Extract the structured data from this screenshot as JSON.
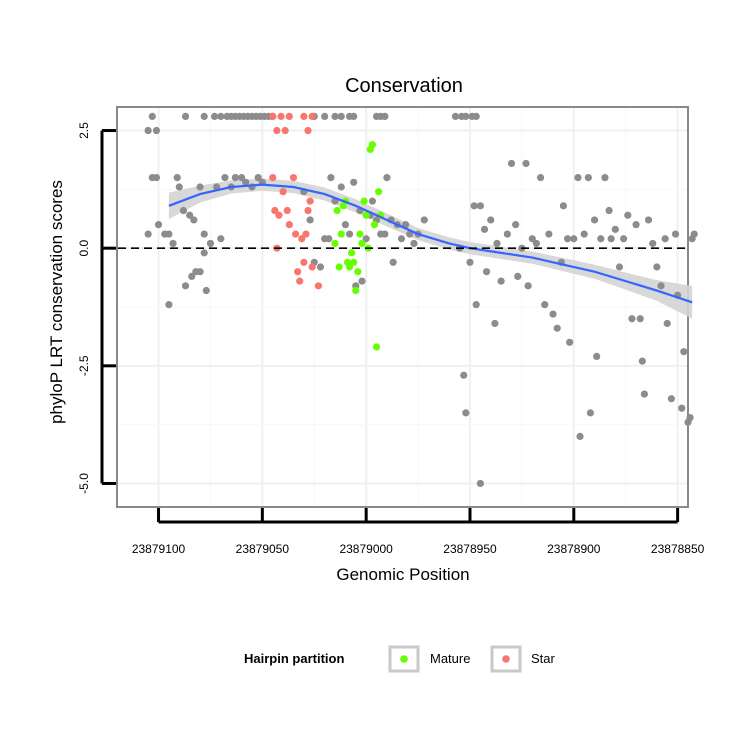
{
  "chart_data": {
    "type": "scatter",
    "title": "Conservation",
    "xlabel": "Genomic Position",
    "ylabel": "phyloP LRT conservation scores",
    "xlim": [
      23879120,
      23878845
    ],
    "ylim": [
      -5.5,
      3.0
    ],
    "x_reversed": true,
    "xticks": [
      23879100,
      23879050,
      23879000,
      23878950,
      23878900,
      23878850
    ],
    "xtick_labels": [
      "23879100",
      "23879050",
      "23879000",
      "23878950",
      "23878900",
      "23878850"
    ],
    "yticks": [
      2.5,
      0.0,
      -2.5,
      -5.0
    ],
    "ytick_labels": [
      "2.5",
      "0.0",
      "-2.5",
      "-5.0"
    ],
    "reference_line": {
      "y": 0,
      "style": "dashed",
      "color": "#000000"
    },
    "legend": {
      "title": "Hairpin partition",
      "position": "bottom",
      "entries": [
        {
          "label": "Mature",
          "color": "#66ff00"
        },
        {
          "label": "Star",
          "color": "#f8766d"
        }
      ]
    },
    "colors": {
      "other": "#8c8c8c",
      "Mature": "#66ff00",
      "Star": "#f8766d",
      "smooth": "#3366ff",
      "ribbon": "#d4d4d4"
    },
    "series": [
      {
        "name": "Other",
        "points": [
          [
            23879105,
            2.5
          ],
          [
            23879103,
            2.8
          ],
          [
            23879101,
            2.5
          ],
          [
            23879103,
            1.5
          ],
          [
            23879101,
            1.5
          ],
          [
            23879105,
            0.3
          ],
          [
            23879100,
            0.5
          ],
          [
            23879097,
            0.3
          ],
          [
            23879095,
            0.3
          ],
          [
            23879093,
            0.1
          ],
          [
            23879091,
            1.5
          ],
          [
            23879090,
            1.3
          ],
          [
            23879088,
            0.8
          ],
          [
            23879085,
            0.7
          ],
          [
            23879083,
            0.6
          ],
          [
            23879080,
            1.3
          ],
          [
            23879078,
            0.3
          ],
          [
            23879075,
            0.1
          ],
          [
            23879072,
            1.3
          ],
          [
            23879070,
            0.2
          ],
          [
            23879068,
            1.5
          ],
          [
            23879065,
            1.3
          ],
          [
            23879063,
            1.5
          ],
          [
            23879060,
            1.5
          ],
          [
            23879058,
            1.4
          ],
          [
            23879055,
            1.3
          ],
          [
            23879052,
            1.5
          ],
          [
            23879050,
            1.4
          ],
          [
            23879095,
            -1.2
          ],
          [
            23879087,
            -0.8
          ],
          [
            23879084,
            -0.6
          ],
          [
            23879082,
            -0.5
          ],
          [
            23879080,
            -0.5
          ],
          [
            23879078,
            -0.1
          ],
          [
            23879077,
            -0.9
          ],
          [
            23879087,
            2.8
          ],
          [
            23879078,
            2.8
          ],
          [
            23879073,
            2.8
          ],
          [
            23879070,
            2.8
          ],
          [
            23879067,
            2.8
          ],
          [
            23879065,
            2.8
          ],
          [
            23879063,
            2.8
          ],
          [
            23879061,
            2.8
          ],
          [
            23879059,
            2.8
          ],
          [
            23879057,
            2.8
          ],
          [
            23879055,
            2.8
          ],
          [
            23879053,
            2.8
          ],
          [
            23879051,
            2.8
          ],
          [
            23879049,
            2.8
          ],
          [
            23879047,
            2.8
          ],
          [
            23879045,
            2.8
          ],
          [
            23879025,
            2.8
          ],
          [
            23879020,
            2.8
          ],
          [
            23879015,
            2.8
          ],
          [
            23879012,
            2.8
          ],
          [
            23879008,
            2.8
          ],
          [
            23879006,
            2.8
          ],
          [
            23878995,
            2.8
          ],
          [
            23878993,
            2.8
          ],
          [
            23878991,
            2.8
          ],
          [
            23878957,
            2.8
          ],
          [
            23878954,
            2.8
          ],
          [
            23878952,
            2.8
          ],
          [
            23878949,
            2.8
          ],
          [
            23878947,
            2.8
          ],
          [
            23879030,
            1.2
          ],
          [
            23879027,
            0.6
          ],
          [
            23879025,
            -0.3
          ],
          [
            23879022,
            -0.4
          ],
          [
            23879020,
            0.2
          ],
          [
            23879018,
            0.2
          ],
          [
            23879017,
            1.5
          ],
          [
            23879015,
            1.0
          ],
          [
            23879012,
            1.3
          ],
          [
            23879010,
            0.5
          ],
          [
            23879008,
            0.3
          ],
          [
            23879006,
            1.4
          ],
          [
            23879005,
            -0.8
          ],
          [
            23879003,
            0.8
          ],
          [
            23879002,
            -0.7
          ],
          [
            23879000,
            0.2
          ],
          [
            23878998,
            0.7
          ],
          [
            23878997,
            1.0
          ],
          [
            23878995,
            0.6
          ],
          [
            23878993,
            0.3
          ],
          [
            23878991,
            0.3
          ],
          [
            23878990,
            1.5
          ],
          [
            23878988,
            0.6
          ],
          [
            23878987,
            -0.3
          ],
          [
            23878985,
            0.5
          ],
          [
            23878983,
            0.2
          ],
          [
            23878981,
            0.5
          ],
          [
            23878979,
            0.3
          ],
          [
            23878977,
            0.1
          ],
          [
            23878975,
            0.3
          ],
          [
            23878972,
            0.6
          ],
          [
            23878955,
            0.0
          ],
          [
            23878953,
            -2.7
          ],
          [
            23878952,
            -3.5
          ],
          [
            23878950,
            -0.3
          ],
          [
            23878948,
            0.9
          ],
          [
            23878947,
            -1.2
          ],
          [
            23878945,
            0.9
          ],
          [
            23878943,
            0.4
          ],
          [
            23878942,
            -0.5
          ],
          [
            23878940,
            0.6
          ],
          [
            23878938,
            -1.6
          ],
          [
            23878937,
            0.1
          ],
          [
            23878935,
            -0.7
          ],
          [
            23878932,
            0.3
          ],
          [
            23878930,
            1.8
          ],
          [
            23878928,
            0.5
          ],
          [
            23878927,
            -0.6
          ],
          [
            23878925,
            0.0
          ],
          [
            23878923,
            1.8
          ],
          [
            23878922,
            -0.8
          ],
          [
            23878920,
            0.2
          ],
          [
            23878918,
            0.1
          ],
          [
            23878916,
            1.5
          ],
          [
            23878914,
            -1.2
          ],
          [
            23878912,
            0.3
          ],
          [
            23878910,
            -1.4
          ],
          [
            23878908,
            -1.7
          ],
          [
            23878906,
            -0.3
          ],
          [
            23878905,
            0.9
          ],
          [
            23878903,
            0.2
          ],
          [
            23878902,
            -2.0
          ],
          [
            23878900,
            0.2
          ],
          [
            23878898,
            1.5
          ],
          [
            23878897,
            -4.0
          ],
          [
            23878895,
            0.3
          ],
          [
            23878893,
            1.5
          ],
          [
            23878892,
            -3.5
          ],
          [
            23878890,
            0.6
          ],
          [
            23878889,
            -2.3
          ],
          [
            23878887,
            0.2
          ],
          [
            23878885,
            1.5
          ],
          [
            23878883,
            0.8
          ],
          [
            23878882,
            0.2
          ],
          [
            23878880,
            0.4
          ],
          [
            23878878,
            -0.4
          ],
          [
            23878876,
            0.2
          ],
          [
            23878874,
            0.7
          ],
          [
            23878872,
            -1.5
          ],
          [
            23878870,
            0.5
          ],
          [
            23878868,
            -1.5
          ],
          [
            23878867,
            -2.4
          ],
          [
            23878866,
            -3.1
          ],
          [
            23878864,
            0.6
          ],
          [
            23878862,
            0.1
          ],
          [
            23878860,
            -0.4
          ],
          [
            23878858,
            -0.8
          ],
          [
            23878856,
            0.2
          ],
          [
            23878855,
            -1.6
          ],
          [
            23878853,
            -3.2
          ],
          [
            23878851,
            0.3
          ],
          [
            23878850,
            -1.0
          ],
          [
            23878848,
            -3.4
          ],
          [
            23878847,
            -2.2
          ],
          [
            23878845,
            -3.7
          ],
          [
            23878844,
            -3.6
          ],
          [
            23878843,
            0.2
          ],
          [
            23878842,
            0.3
          ],
          [
            23878945,
            -5.0
          ]
        ]
      },
      {
        "name": "Star",
        "points": [
          [
            23879045,
            1.5
          ],
          [
            23879044,
            0.8
          ],
          [
            23879043,
            0.0
          ],
          [
            23879042,
            0.7
          ],
          [
            23879040,
            1.2
          ],
          [
            23879038,
            0.8
          ],
          [
            23879037,
            0.5
          ],
          [
            23879035,
            1.5
          ],
          [
            23879034,
            0.3
          ],
          [
            23879033,
            -0.5
          ],
          [
            23879032,
            -0.7
          ],
          [
            23879031,
            0.2
          ],
          [
            23879030,
            -0.3
          ],
          [
            23879029,
            0.3
          ],
          [
            23879028,
            0.8
          ],
          [
            23879027,
            1.0
          ],
          [
            23879026,
            -0.4
          ],
          [
            23879023,
            -0.8
          ],
          [
            23879045,
            2.8
          ],
          [
            23879043,
            2.5
          ],
          [
            23879041,
            2.8
          ],
          [
            23879039,
            2.5
          ],
          [
            23879037,
            2.8
          ],
          [
            23879030,
            2.8
          ],
          [
            23879028,
            2.5
          ],
          [
            23879026,
            2.8
          ]
        ]
      },
      {
        "name": "Mature",
        "points": [
          [
            23879015,
            0.1
          ],
          [
            23879014,
            0.8
          ],
          [
            23879013,
            -0.4
          ],
          [
            23879012,
            0.3
          ],
          [
            23879011,
            0.9
          ],
          [
            23879010,
            1.0
          ],
          [
            23879009,
            -0.3
          ],
          [
            23879008,
            -0.4
          ],
          [
            23879007,
            -0.1
          ],
          [
            23879006,
            -0.3
          ],
          [
            23879005,
            -0.9
          ],
          [
            23879004,
            -0.5
          ],
          [
            23879003,
            0.3
          ],
          [
            23879002,
            0.1
          ],
          [
            23879001,
            1.0
          ],
          [
            23879000,
            0.7
          ],
          [
            23878999,
            0.0
          ],
          [
            23878998,
            2.1
          ],
          [
            23878997,
            2.2
          ],
          [
            23878996,
            0.5
          ],
          [
            23878995,
            -2.1
          ],
          [
            23878994,
            1.2
          ],
          [
            23878993,
            0.7
          ]
        ]
      }
    ],
    "smooth": [
      [
        23879095,
        0.9
      ],
      [
        23879080,
        1.15
      ],
      [
        23879065,
        1.3
      ],
      [
        23879050,
        1.35
      ],
      [
        23879035,
        1.3
      ],
      [
        23879020,
        1.15
      ],
      [
        23879005,
        0.9
      ],
      [
        23878990,
        0.6
      ],
      [
        23878975,
        0.3
      ],
      [
        23878960,
        0.1
      ],
      [
        23878950,
        0.0
      ],
      [
        23878935,
        -0.1
      ],
      [
        23878920,
        -0.2
      ],
      [
        23878905,
        -0.35
      ],
      [
        23878890,
        -0.5
      ],
      [
        23878875,
        -0.7
      ],
      [
        23878860,
        -0.9
      ],
      [
        23878843,
        -1.15
      ]
    ],
    "ribbon_halfwidth": [
      0.28,
      0.18,
      0.14,
      0.13,
      0.13,
      0.14,
      0.14,
      0.14,
      0.13,
      0.13,
      0.13,
      0.13,
      0.13,
      0.14,
      0.15,
      0.18,
      0.22,
      0.35
    ]
  }
}
